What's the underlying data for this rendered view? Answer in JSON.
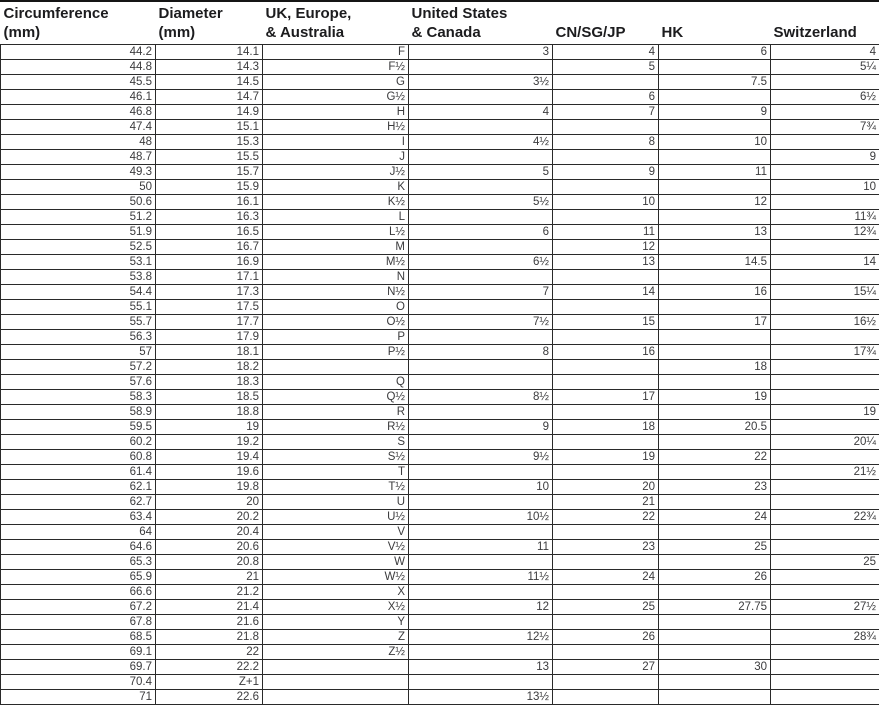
{
  "table": {
    "column_keys": [
      "circumference_mm",
      "diameter_mm",
      "uk_europe_australia",
      "us_canada",
      "cn_sg_jp",
      "hk",
      "switzerland"
    ],
    "columns": [
      {
        "line1": "Circumference",
        "line2": "(mm)"
      },
      {
        "line1": "Diameter",
        "line2": "(mm)"
      },
      {
        "line1": "UK, Europe,",
        "line2": "& Australia"
      },
      {
        "line1": "United States",
        "line2": "& Canada"
      },
      {
        "line1": "",
        "line2": "CN/SG/JP"
      },
      {
        "line1": "",
        "line2": "HK"
      },
      {
        "line1": "",
        "line2": "Switzerland"
      }
    ],
    "rows": [
      [
        "44.2",
        "14.1",
        "F",
        "3",
        "4",
        "6",
        "4"
      ],
      [
        "44.8",
        "14.3",
        "F½",
        "",
        "5",
        "",
        "5¼"
      ],
      [
        "45.5",
        "14.5",
        "G",
        "3½",
        "",
        "7.5",
        ""
      ],
      [
        "46.1",
        "14.7",
        "G½",
        "",
        "6",
        "",
        "6½"
      ],
      [
        "46.8",
        "14.9",
        "H",
        "4",
        "7",
        "9",
        ""
      ],
      [
        "47.4",
        "15.1",
        "H½",
        "",
        "",
        "",
        "7¾"
      ],
      [
        "48",
        "15.3",
        "I",
        "4½",
        "8",
        "10",
        ""
      ],
      [
        "48.7",
        "15.5",
        "J",
        "",
        "",
        "",
        "9"
      ],
      [
        "49.3",
        "15.7",
        "J½",
        "5",
        "9",
        "11",
        ""
      ],
      [
        "50",
        "15.9",
        "K",
        "",
        "",
        "",
        "10"
      ],
      [
        "50.6",
        "16.1",
        "K½",
        "5½",
        "10",
        "12",
        ""
      ],
      [
        "51.2",
        "16.3",
        "L",
        "",
        "",
        "",
        "11¾"
      ],
      [
        "51.9",
        "16.5",
        "L½",
        "6",
        "11",
        "13",
        "12¾"
      ],
      [
        "52.5",
        "16.7",
        "M",
        "",
        "12",
        "",
        ""
      ],
      [
        "53.1",
        "16.9",
        "M½",
        "6½",
        "13",
        "14.5",
        "14"
      ],
      [
        "53.8",
        "17.1",
        "N",
        "",
        "",
        "",
        ""
      ],
      [
        "54.4",
        "17.3",
        "N½",
        "7",
        "14",
        "16",
        "15¼"
      ],
      [
        "55.1",
        "17.5",
        "O",
        "",
        "",
        "",
        ""
      ],
      [
        "55.7",
        "17.7",
        "O½",
        "7½",
        "15",
        "17",
        "16½"
      ],
      [
        "56.3",
        "17.9",
        "P",
        "",
        "",
        "",
        ""
      ],
      [
        "57",
        "18.1",
        "P½",
        "8",
        "16",
        "",
        "17¾"
      ],
      [
        "57.2",
        "18.2",
        "",
        "",
        "",
        "18",
        ""
      ],
      [
        "57.6",
        "18.3",
        "Q",
        "",
        "",
        "",
        ""
      ],
      [
        "58.3",
        "18.5",
        "Q½",
        "8½",
        "17",
        "19",
        ""
      ],
      [
        "58.9",
        "18.8",
        "R",
        "",
        "",
        "",
        "19"
      ],
      [
        "59.5",
        "19",
        "R½",
        "9",
        "18",
        "20.5",
        ""
      ],
      [
        "60.2",
        "19.2",
        "S",
        "",
        "",
        "",
        "20¼"
      ],
      [
        "60.8",
        "19.4",
        "S½",
        "9½",
        "19",
        "22",
        ""
      ],
      [
        "61.4",
        "19.6",
        "T",
        "",
        "",
        "",
        "21½"
      ],
      [
        "62.1",
        "19.8",
        "T½",
        "10",
        "20",
        "23",
        ""
      ],
      [
        "62.7",
        "20",
        "U",
        "",
        "21",
        "",
        ""
      ],
      [
        "63.4",
        "20.2",
        "U½",
        "10½",
        "22",
        "24",
        "22¾"
      ],
      [
        "64",
        "20.4",
        "V",
        "",
        "",
        "",
        ""
      ],
      [
        "64.6",
        "20.6",
        "V½",
        "11",
        "23",
        "25",
        ""
      ],
      [
        "65.3",
        "20.8",
        "W",
        "",
        "",
        "",
        "25"
      ],
      [
        "65.9",
        "21",
        "W½",
        "11½",
        "24",
        "26",
        ""
      ],
      [
        "66.6",
        "21.2",
        "X",
        "",
        "",
        "",
        ""
      ],
      [
        "67.2",
        "21.4",
        "X½",
        "12",
        "25",
        "27.75",
        "27½"
      ],
      [
        "67.8",
        "21.6",
        "Y",
        "",
        "",
        "",
        ""
      ],
      [
        "68.5",
        "21.8",
        "Z",
        "12½",
        "26",
        "",
        "28¾"
      ],
      [
        "69.1",
        "22",
        "Z½",
        "",
        "",
        "",
        ""
      ],
      [
        "69.7",
        "22.2",
        "",
        "13",
        "27",
        "30",
        ""
      ],
      [
        "70.4",
        "Z+1",
        "",
        "",
        "",
        "",
        ""
      ],
      [
        "71",
        "22.6",
        "",
        "13½",
        "",
        "",
        ""
      ]
    ],
    "colors": {
      "header_text": "#1c1c1e",
      "body_text": "#3b3b3d",
      "grid_line": "#2a2a2a",
      "background": "#ffffff"
    }
  }
}
